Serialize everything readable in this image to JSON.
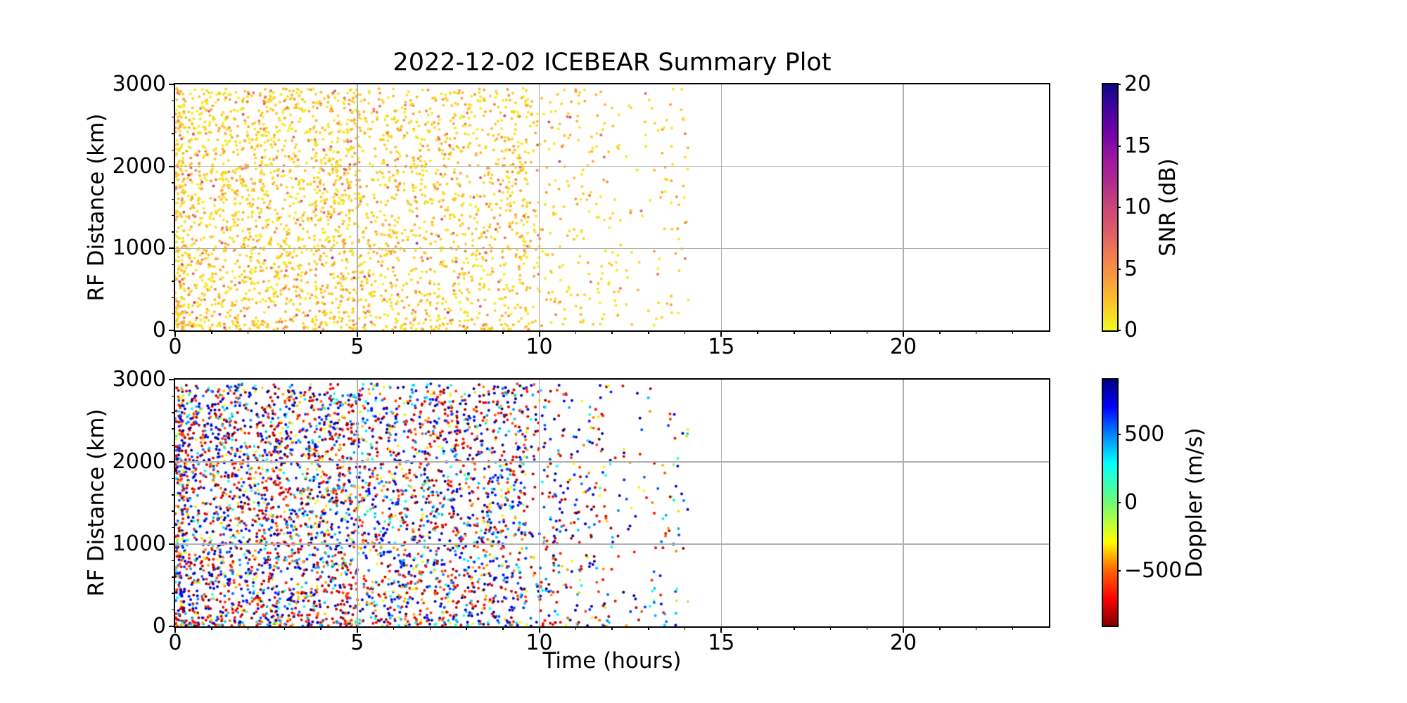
{
  "figure": {
    "background_color": "#ffffff",
    "grid_color": "#b0b0b0",
    "axis_color": "#000000"
  },
  "colormaps": {
    "plasma_r": [
      [
        0,
        "#f0f921"
      ],
      [
        0.1,
        "#fdca26"
      ],
      [
        0.2,
        "#fb9f3a"
      ],
      [
        0.3,
        "#f0804e"
      ],
      [
        0.4,
        "#e05b67"
      ],
      [
        0.5,
        "#cc4778"
      ],
      [
        0.6,
        "#b12a90"
      ],
      [
        0.7,
        "#9c179e"
      ],
      [
        0.8,
        "#7201a8"
      ],
      [
        0.9,
        "#46039f"
      ],
      [
        1,
        "#0d0887"
      ]
    ],
    "jet_r": [
      [
        0,
        "#800000"
      ],
      [
        0.11,
        "#ff0000"
      ],
      [
        0.23,
        "#ff6a00"
      ],
      [
        0.34,
        "#ffff00"
      ],
      [
        0.5,
        "#70fb76"
      ],
      [
        0.66,
        "#00ffff"
      ],
      [
        0.78,
        "#0080ff"
      ],
      [
        0.89,
        "#0000ff"
      ],
      [
        1,
        "#000080"
      ]
    ]
  },
  "chart_data": [
    {
      "type": "scatter",
      "title": "2022-12-02 ICEBEAR Summary Plot",
      "xlabel": "",
      "ylabel": "RF Distance (km)",
      "xlim": [
        0,
        24
      ],
      "ylim": [
        0,
        3000
      ],
      "x_ticks": [
        0,
        5,
        10,
        15,
        20
      ],
      "x_tick_labels": [
        "0",
        "5",
        "10",
        "15",
        "20"
      ],
      "x_minor_step": 1,
      "y_ticks": [
        0,
        1000,
        2000,
        3000
      ],
      "y_tick_labels": [
        "0",
        "1000",
        "2000",
        "3000"
      ],
      "y_minor_step": 200,
      "grid": true,
      "colorbar": {
        "label": "SNR (dB)",
        "range": [
          0,
          20
        ],
        "ticks": [
          0,
          5,
          10,
          15,
          20
        ],
        "tick_labels": [
          "0",
          "5",
          "10",
          "15",
          "20"
        ],
        "colormap": "plasma_r"
      },
      "points": {
        "n": 3200,
        "seed": 42,
        "marker_radius_px": 2,
        "data_time_span_hours": [
          0,
          14.1
        ],
        "x_density": [
          {
            "a": 0,
            "b": 0.25,
            "w": 2.3
          },
          {
            "a": 0.25,
            "b": 5,
            "w": 1.0
          },
          {
            "a": 5,
            "b": 9.7,
            "w": 0.74
          },
          {
            "a": 9.7,
            "b": 11.8,
            "w": 0.3
          },
          {
            "a": 11.8,
            "b": 14.1,
            "w": 0.13
          }
        ],
        "y_density": [
          {
            "a": 0,
            "b": 80,
            "w": 1.9
          },
          {
            "a": 80,
            "b": 2950,
            "w": 1.0
          }
        ],
        "value_model": {
          "kind": "exponential",
          "offset": 0.3,
          "mean": 2.0,
          "clamp": [
            0,
            20
          ]
        }
      }
    },
    {
      "type": "scatter",
      "title": "",
      "xlabel": "Time (hours)",
      "ylabel": "RF Distance (km)",
      "xlim": [
        0,
        24
      ],
      "ylim": [
        0,
        3000
      ],
      "x_ticks": [
        0,
        5,
        10,
        15,
        20
      ],
      "x_tick_labels": [
        "0",
        "5",
        "10",
        "15",
        "20"
      ],
      "x_minor_step": 1,
      "y_ticks": [
        0,
        1000,
        2000,
        3000
      ],
      "y_tick_labels": [
        "0",
        "1000",
        "2000",
        "3000"
      ],
      "y_minor_step": 200,
      "grid": true,
      "colorbar": {
        "label": "Doppler (m/s)",
        "range": [
          -900,
          900
        ],
        "ticks": [
          500,
          0,
          -500
        ],
        "tick_labels": [
          "500",
          "0",
          "−500"
        ],
        "colormap": "jet_r"
      },
      "points": {
        "n": 4200,
        "seed": 1337,
        "marker_radius_px": 2,
        "data_time_span_hours": [
          0,
          14.1
        ],
        "x_density": [
          {
            "a": 0,
            "b": 0.25,
            "w": 2.3
          },
          {
            "a": 0.25,
            "b": 5,
            "w": 1.0
          },
          {
            "a": 5,
            "b": 9.7,
            "w": 0.74
          },
          {
            "a": 9.7,
            "b": 11.8,
            "w": 0.3
          },
          {
            "a": 11.8,
            "b": 14.1,
            "w": 0.13
          }
        ],
        "y_density": [
          {
            "a": 0,
            "b": 80,
            "w": 1.9
          },
          {
            "a": 80,
            "b": 2950,
            "w": 1.0
          }
        ],
        "value_model": {
          "kind": "bipolar",
          "max": 900,
          "bias_exponent": 0.45
        }
      }
    }
  ]
}
